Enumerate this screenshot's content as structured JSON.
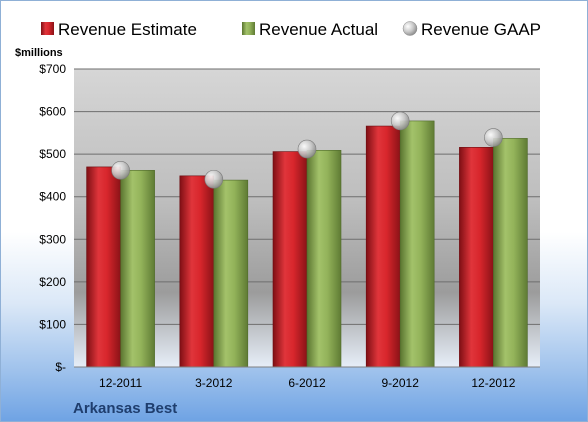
{
  "chart_data": {
    "type": "bar",
    "legend_position": "top",
    "unit_label": "$millions",
    "company": "Arkansas Best",
    "categories": [
      "12-2011",
      "3-2012",
      "6-2012",
      "9-2012",
      "12-2012"
    ],
    "series": [
      {
        "name": "Revenue Estimate",
        "kind": "bar",
        "color": "#cc2128",
        "values": [
          470,
          449,
          506,
          566,
          516
        ]
      },
      {
        "name": "Revenue Actual",
        "kind": "bar",
        "color": "#8aaa52",
        "values": [
          462,
          439,
          509,
          578,
          537
        ]
      },
      {
        "name": "Revenue GAAP",
        "kind": "marker",
        "color": "#c8c8c8",
        "values": [
          462,
          441,
          512,
          578,
          539
        ]
      }
    ],
    "ylim": [
      0,
      700
    ],
    "y_ticks": [
      0,
      100,
      200,
      300,
      400,
      500,
      600,
      700
    ],
    "y_tick_labels": [
      "$-",
      "$100",
      "$200",
      "$300",
      "$400",
      "$500",
      "$600",
      "$700"
    ],
    "grid": true
  }
}
